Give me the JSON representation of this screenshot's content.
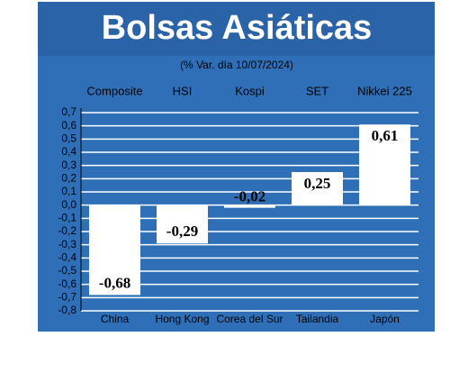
{
  "chart_data": {
    "type": "bar",
    "title": "Bolsas Asiáticas",
    "subtitle": "(% Var. día 10/07/2024)",
    "indices": [
      "Composite",
      "HSI",
      "Kospi",
      "SET",
      "Nikkei 225"
    ],
    "categories": [
      "China",
      "Hong Kong",
      "Corea del Sur",
      "Tailandia",
      "Japón"
    ],
    "values": [
      -0.68,
      -0.29,
      -0.02,
      0.25,
      0.61
    ],
    "value_labels": [
      "-0,68",
      "-0,29",
      "-0,02",
      "0,25",
      "0,61"
    ],
    "color": "#ffffff",
    "ylim": [
      -0.8,
      0.7
    ],
    "yticks": [
      {
        "value": -0.8,
        "label": "-0,8"
      },
      {
        "value": -0.7,
        "label": "-0,7"
      },
      {
        "value": -0.6,
        "label": "-0,6"
      },
      {
        "value": -0.5,
        "label": "-0,5"
      },
      {
        "value": -0.4,
        "label": "-0,4"
      },
      {
        "value": -0.3,
        "label": "-0,3"
      },
      {
        "value": -0.2,
        "label": "-0,2"
      },
      {
        "value": -0.1,
        "label": "-0,1"
      },
      {
        "value": 0,
        "label": "0,0"
      },
      {
        "value": 0.1,
        "label": "0,1"
      },
      {
        "value": 0.2,
        "label": "0,2"
      },
      {
        "value": 0.3,
        "label": "0,3"
      },
      {
        "value": 0.4,
        "label": "0,4"
      },
      {
        "value": 0.5,
        "label": "0,5"
      },
      {
        "value": 0.6,
        "label": "0,6"
      },
      {
        "value": 0.7,
        "label": "0,7"
      }
    ],
    "grid": true
  }
}
